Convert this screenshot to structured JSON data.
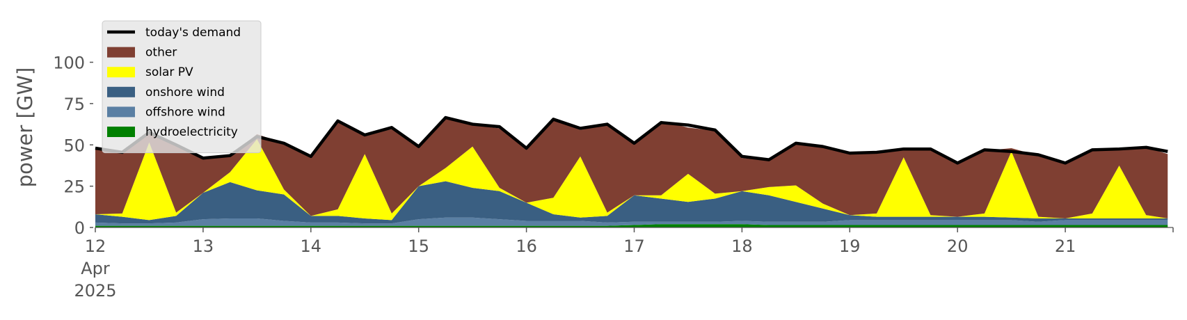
{
  "chart_data": {
    "type": "area",
    "title": "",
    "xlabel": "",
    "ylabel": "power [GW]",
    "ylim": [
      0,
      120
    ],
    "yticks": [
      0,
      25,
      50,
      75,
      100
    ],
    "xlim": [
      12,
      22
    ],
    "xticks": [
      {
        "day": 12,
        "label": "12",
        "sub": [
          "Apr",
          "2025"
        ]
      },
      {
        "day": 13,
        "label": "13"
      },
      {
        "day": 14,
        "label": "14"
      },
      {
        "day": 15,
        "label": "15"
      },
      {
        "day": 16,
        "label": "16"
      },
      {
        "day": 17,
        "label": "17"
      },
      {
        "day": 18,
        "label": "18"
      },
      {
        "day": 19,
        "label": "19"
      },
      {
        "day": 20,
        "label": "20"
      },
      {
        "day": 21,
        "label": "21"
      }
    ],
    "grid": false,
    "legend_position": "top-left",
    "x": [
      12.0,
      12.25,
      12.5,
      12.75,
      13.0,
      13.25,
      13.5,
      13.75,
      14.0,
      14.25,
      14.5,
      14.75,
      15.0,
      15.25,
      15.5,
      15.75,
      16.0,
      16.25,
      16.5,
      16.75,
      17.0,
      17.25,
      17.5,
      17.75,
      18.0,
      18.25,
      18.5,
      18.75,
      19.0,
      19.25,
      19.5,
      19.75,
      20.0,
      20.25,
      20.5,
      20.75,
      21.0,
      21.25,
      21.5,
      21.75,
      21.95
    ],
    "series": [
      {
        "name": "hydroelectricity",
        "color": "#008000",
        "type": "area",
        "values": [
          1,
          1,
          1,
          1,
          1,
          1,
          1,
          1,
          1,
          1,
          1,
          1,
          1,
          1,
          1,
          1,
          1,
          1,
          1,
          1,
          1.5,
          2,
          2,
          2,
          2,
          1.5,
          1.5,
          1.5,
          1.5,
          1.5,
          1.5,
          1.5,
          1.5,
          1.5,
          1.5,
          1.5,
          1.5,
          1.5,
          1.5,
          1.5,
          1.5
        ]
      },
      {
        "name": "offshore wind",
        "color": "#5a7fa3",
        "type": "area",
        "values": [
          2,
          1.5,
          1.5,
          2,
          4,
          4.5,
          4.5,
          3,
          2,
          2,
          1.5,
          1.5,
          4,
          5,
          5,
          4,
          3,
          3,
          3,
          2,
          2,
          1.5,
          1.5,
          1.5,
          2,
          2,
          2,
          2,
          3,
          3,
          3,
          3,
          3,
          3,
          3,
          2,
          3,
          3,
          3,
          3,
          3
        ]
      },
      {
        "name": "onshore wind",
        "color": "#3a5f82",
        "type": "area",
        "values": [
          5,
          4,
          2,
          4,
          16,
          22,
          17,
          16,
          4,
          4,
          3,
          2,
          20,
          22,
          18,
          17,
          11,
          4,
          2,
          4,
          16,
          14,
          12,
          14,
          18,
          16,
          12,
          8,
          3,
          2,
          2,
          2,
          2,
          2,
          1.5,
          2,
          1,
          1,
          1,
          1,
          1
        ]
      },
      {
        "name": "solar PV",
        "color": "#ffff00",
        "type": "area",
        "values": [
          0,
          2,
          47,
          2,
          0,
          6,
          31,
          3,
          0,
          4,
          39,
          4,
          0,
          8,
          25,
          2,
          0,
          10,
          37,
          2,
          0,
          2,
          17,
          3,
          0,
          5,
          10,
          3,
          0,
          2,
          36,
          1,
          0,
          2,
          40,
          1,
          0,
          3,
          32,
          2,
          0
        ]
      },
      {
        "name": "other",
        "color": "#7f3f32",
        "type": "area",
        "values": [
          40,
          37,
          6,
          41,
          21,
          10,
          3,
          28,
          36,
          53,
          11,
          51,
          24,
          30,
          13,
          36,
          33,
          47,
          16,
          53,
          31,
          45,
          28,
          38,
          20,
          16,
          25,
          34,
          37,
          37,
          5,
          40,
          32,
          38,
          2,
          37,
          33,
          38,
          10,
          41,
          39
        ]
      },
      {
        "name": "today's demand",
        "color": "#000000",
        "type": "line",
        "values": [
          48,
          45.5,
          57.5,
          50,
          42,
          43.5,
          55,
          51,
          43,
          64.5,
          56,
          60.5,
          49,
          66.5,
          62.5,
          61,
          48,
          65.5,
          60,
          62.5,
          51,
          63.5,
          62,
          59,
          43,
          41,
          51,
          49,
          45,
          45.5,
          47.5,
          47.5,
          39,
          47,
          46,
          44,
          39,
          47,
          47.5,
          48.5,
          46
        ]
      }
    ]
  },
  "legend": {
    "items": [
      {
        "label": "today's demand",
        "kind": "line",
        "color": "#000000"
      },
      {
        "label": "other",
        "kind": "patch",
        "color": "#7f3f32"
      },
      {
        "label": "solar PV",
        "kind": "patch",
        "color": "#ffff00"
      },
      {
        "label": "onshore wind",
        "kind": "patch",
        "color": "#3a5f82"
      },
      {
        "label": "offshore wind",
        "kind": "patch",
        "color": "#5a7fa3"
      },
      {
        "label": "hydroelectricity",
        "kind": "patch",
        "color": "#008000"
      }
    ]
  }
}
